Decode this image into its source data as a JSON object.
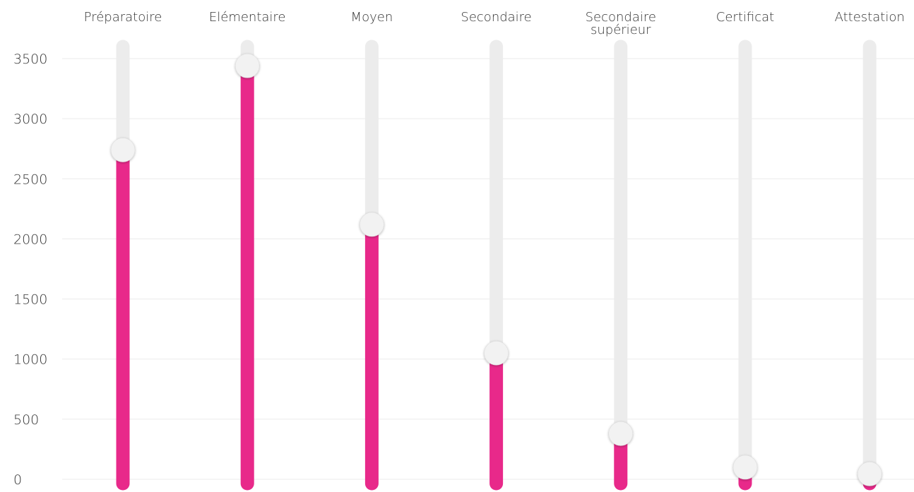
{
  "chart_data": {
    "type": "bar",
    "title": "",
    "xlabel": "",
    "ylabel": "",
    "ylim": [
      0,
      3600
    ],
    "yticks": [
      0,
      500,
      1000,
      1500,
      2000,
      2500,
      3000,
      3500
    ],
    "grid": true,
    "legend": "none",
    "categories": [
      [
        "Préparatoire"
      ],
      [
        "Elémentaire"
      ],
      [
        "Moyen"
      ],
      [
        "Secondaire"
      ],
      [
        "Secondaire",
        "supérieur"
      ],
      [
        "Certificat"
      ],
      [
        "Attestation"
      ]
    ],
    "series": [
      {
        "values": [
          2740,
          3440,
          2120,
          1050,
          380,
          100,
          45
        ]
      }
    ],
    "colors": {
      "fill": "#e8298a",
      "track": "#ececec",
      "grid": "#ebebeb",
      "handle": "#f2f2f2",
      "label": "#333333"
    }
  }
}
